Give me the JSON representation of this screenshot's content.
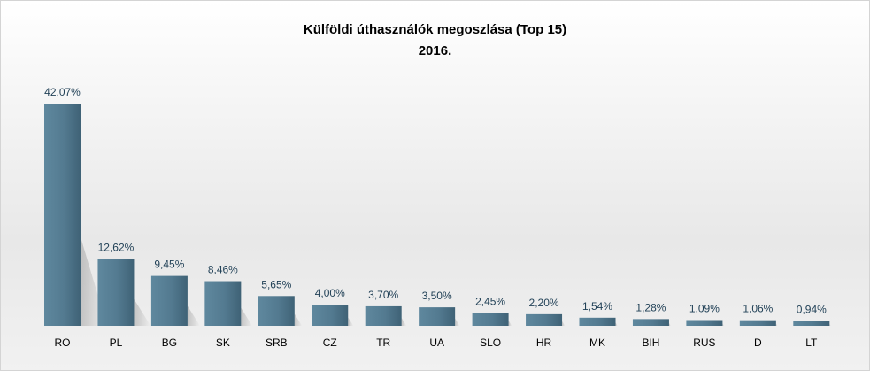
{
  "chart_data": {
    "type": "bar",
    "title": "Külföldi úthasználók megoszlása (Top 15)",
    "subtitle": "2016.",
    "categories": [
      "RO",
      "PL",
      "BG",
      "SK",
      "SRB",
      "CZ",
      "TR",
      "UA",
      "SLO",
      "HR",
      "MK",
      "BIH",
      "RUS",
      "D",
      "LT"
    ],
    "values": [
      42.07,
      12.62,
      9.45,
      8.46,
      5.65,
      4.0,
      3.7,
      3.5,
      2.45,
      2.2,
      1.54,
      1.28,
      1.09,
      1.06,
      0.94
    ],
    "data_labels": [
      "42,07%",
      "12,62%",
      "9,45%",
      "8,46%",
      "5,65%",
      "4,00%",
      "3,70%",
      "3,50%",
      "2,45%",
      "2,20%",
      "1,54%",
      "1,28%",
      "1,09%",
      "1,06%",
      "0,94%"
    ],
    "ylim": [
      0,
      45
    ],
    "grid": false,
    "legend": "none",
    "colors": {
      "bar": "#4f7389",
      "bar_light": "#5e889f",
      "label": "#1f3f55"
    }
  }
}
